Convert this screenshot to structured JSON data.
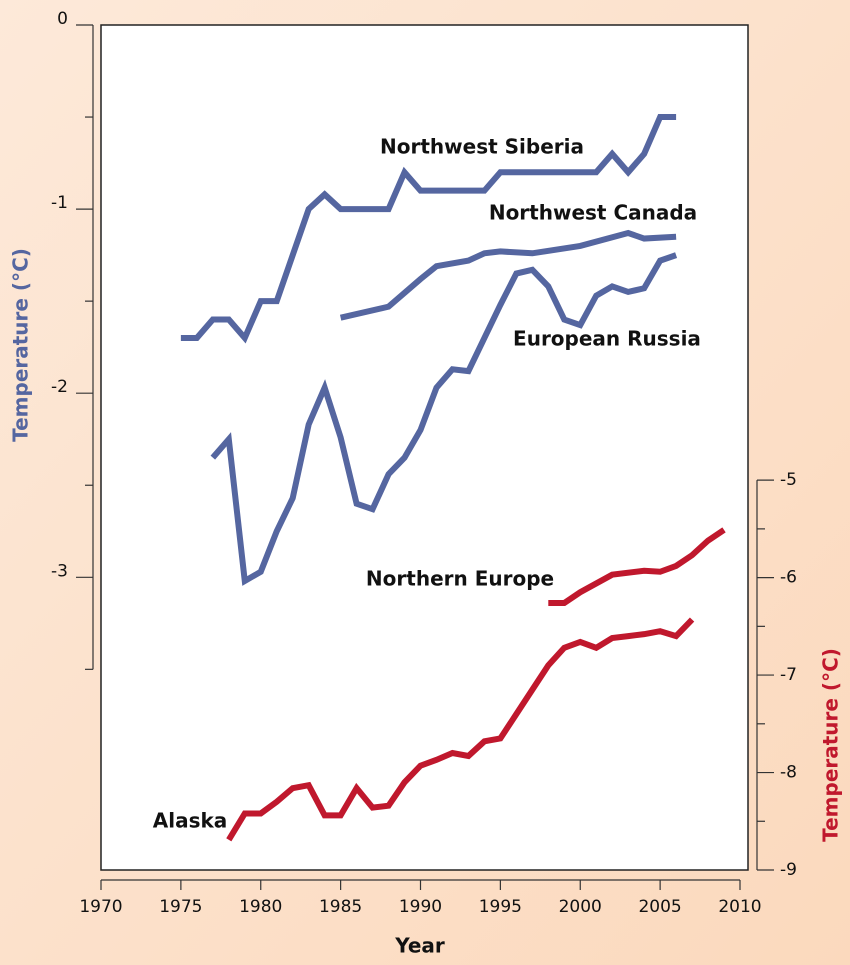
{
  "chart_data": {
    "type": "line",
    "xlabel": "Year",
    "ylabel": "Temperature (°C)",
    "y2label": "Temperature (°C)",
    "xlim": [
      1970,
      2010
    ],
    "xticks": [
      1970,
      1975,
      1980,
      1985,
      1990,
      1995,
      2000,
      2005,
      2010
    ],
    "ylim": [
      -4.59,
      0
    ],
    "yticks": [
      0,
      -1,
      -2,
      -3
    ],
    "yminorticks": [
      -0.5,
      -1.5,
      -2.5,
      -3.5
    ],
    "y2lim": [
      -9,
      -0.33
    ],
    "y2ticks": [
      -5,
      -6,
      -7,
      -8,
      -9
    ],
    "y2minorticks": [
      -5.5,
      -6.5,
      -7.5,
      -8.5
    ],
    "series": [
      {
        "name": "Northwest Siberia",
        "color": "#5566a0",
        "x": [
          1975,
          1976,
          1977,
          1978,
          1979,
          1980,
          1981,
          1982,
          1983,
          1984,
          1985,
          1986,
          1987,
          1988,
          1989,
          1990,
          1991,
          1992,
          1993,
          1994,
          1995,
          1996,
          1997,
          1998,
          1999,
          2000,
          2001,
          2002,
          2003,
          2004,
          2005,
          2006
        ],
        "values": [
          -1.7,
          -1.7,
          -1.6,
          -1.6,
          -1.7,
          -1.5,
          -1.5,
          -1.25,
          -1.0,
          -0.92,
          -1.0,
          -1.0,
          -1.0,
          -1.0,
          -0.8,
          -0.9,
          -0.9,
          -0.9,
          -0.9,
          -0.9,
          -0.8,
          -0.8,
          -0.8,
          -0.8,
          -0.8,
          -0.8,
          -0.8,
          -0.7,
          -0.8,
          -0.7,
          -0.5,
          -0.5
        ]
      },
      {
        "name": "Northwest Canada",
        "color": "#5566a0",
        "x": [
          1985,
          1988,
          1990,
          1991,
          1993,
          1994,
          1995,
          1997,
          2000,
          2003,
          2004,
          2006
        ],
        "values": [
          -1.59,
          -1.53,
          -1.38,
          -1.31,
          -1.28,
          -1.24,
          -1.23,
          -1.24,
          -1.2,
          -1.13,
          -1.16,
          -1.15
        ]
      },
      {
        "name": "European Russia",
        "color": "#5566a0",
        "x": [
          1977,
          1978,
          1979,
          1980,
          1981,
          1982,
          1983,
          1984,
          1985,
          1986,
          1987,
          1988,
          1989,
          1990,
          1991,
          1992,
          1993,
          1994,
          1995,
          1996,
          1997,
          1998,
          1999,
          2000,
          2001,
          2002,
          2003,
          2004,
          2005,
          2006
        ],
        "values": [
          -2.35,
          -2.25,
          -3.02,
          -2.97,
          -2.75,
          -2.57,
          -2.17,
          -1.97,
          -2.24,
          -2.6,
          -2.63,
          -2.44,
          -2.35,
          -2.2,
          -1.97,
          -1.87,
          -1.88,
          -1.7,
          -1.52,
          -1.35,
          -1.33,
          -1.42,
          -1.6,
          -1.63,
          -1.47,
          -1.42,
          -1.45,
          -1.43,
          -1.28,
          -1.25
        ]
      },
      {
        "name": "Northern Europe",
        "color": "#c0182d",
        "axis": "y2",
        "x": [
          1998,
          1999,
          2000,
          2002,
          2004,
          2005,
          2006,
          2007,
          2008,
          2009
        ],
        "values": [
          -6.26,
          -6.26,
          -6.15,
          -5.97,
          -5.93,
          -5.94,
          -5.88,
          -5.77,
          -5.62,
          -5.51
        ]
      },
      {
        "name": "Alaska",
        "color": "#c0182d",
        "axis": "y2",
        "x": [
          1978,
          1979,
          1980,
          1981,
          1982,
          1983,
          1984,
          1985,
          1986,
          1987,
          1988,
          1989,
          1990,
          1991,
          1992,
          1993,
          1994,
          1995,
          1996,
          1997,
          1998,
          1999,
          2000,
          2001,
          2002,
          2003,
          2004,
          2005,
          2006,
          2007
        ],
        "values": [
          -8.69,
          -8.42,
          -8.42,
          -8.3,
          -8.16,
          -8.13,
          -8.44,
          -8.44,
          -8.16,
          -8.36,
          -8.34,
          -8.1,
          -7.93,
          -7.87,
          -7.8,
          -7.83,
          -7.68,
          -7.65,
          -7.4,
          -7.15,
          -6.9,
          -6.72,
          -6.66,
          -6.72,
          -6.62,
          -6.6,
          -6.58,
          -6.55,
          -6.6,
          -6.43
        ]
      }
    ]
  }
}
